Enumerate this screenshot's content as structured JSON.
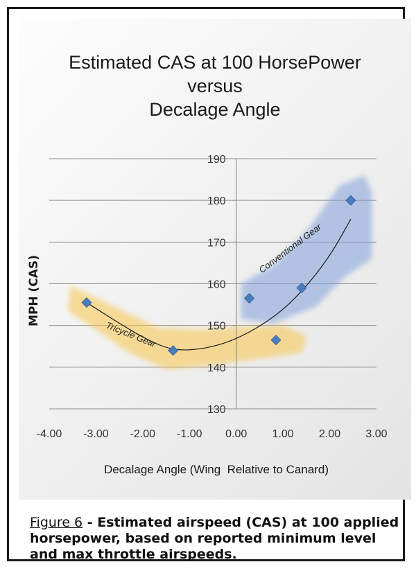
{
  "chart_data": {
    "type": "scatter",
    "title_lines": [
      "Estimated CAS at 100 HorsePower",
      "versus",
      "Decalage Angle"
    ],
    "xlabel": "Decalage Angle (Wing  Relative to Canard)",
    "ylabel": "MPH (CAS)",
    "xlim": [
      -4,
      3
    ],
    "ylim": [
      130,
      190
    ],
    "x_ticks": [
      -4,
      -3,
      -2,
      -1,
      0,
      1,
      2,
      3
    ],
    "x_tick_labels": [
      "-4.00",
      "-3.00",
      "-2.00",
      "-1.00",
      "0.00",
      "1.00",
      "2.00",
      "3.00"
    ],
    "y_ticks": [
      130,
      140,
      150,
      160,
      170,
      180,
      190
    ],
    "y_tick_labels": [
      "130",
      "140",
      "150",
      "160",
      "170",
      "180",
      "190"
    ],
    "grid": true,
    "series": [
      {
        "name": "Tricycle Gear",
        "color": "#4a7ebb",
        "band_color": "#f7c548",
        "points": [
          {
            "x": -3.2,
            "y": 155.5
          },
          {
            "x": -1.35,
            "y": 144
          },
          {
            "x": 0.85,
            "y": 146.5
          }
        ]
      },
      {
        "name": "Conventional Gear",
        "color": "#4a7ebb",
        "band_color": "#7f9fd9",
        "points": [
          {
            "x": 0.28,
            "y": 156.5
          },
          {
            "x": 1.4,
            "y": 159
          },
          {
            "x": 2.45,
            "y": 180
          }
        ]
      }
    ],
    "trendline": {
      "style": "black thin curve",
      "points": [
        [
          -3.2,
          155.5
        ],
        [
          -2.5,
          150.5
        ],
        [
          -1.9,
          146.5
        ],
        [
          -1.35,
          144.0
        ],
        [
          -0.7,
          144.3
        ],
        [
          0,
          146.6
        ],
        [
          0.8,
          151.8
        ],
        [
          1.4,
          158.0
        ],
        [
          2.0,
          166.5
        ],
        [
          2.45,
          175.5
        ]
      ]
    }
  },
  "caption": {
    "figure_label": "Figure 6",
    "text": " - Estimated airspeed (CAS) at 100 applied horsepower, based on reported minimum level and max throttle airspeeds."
  }
}
